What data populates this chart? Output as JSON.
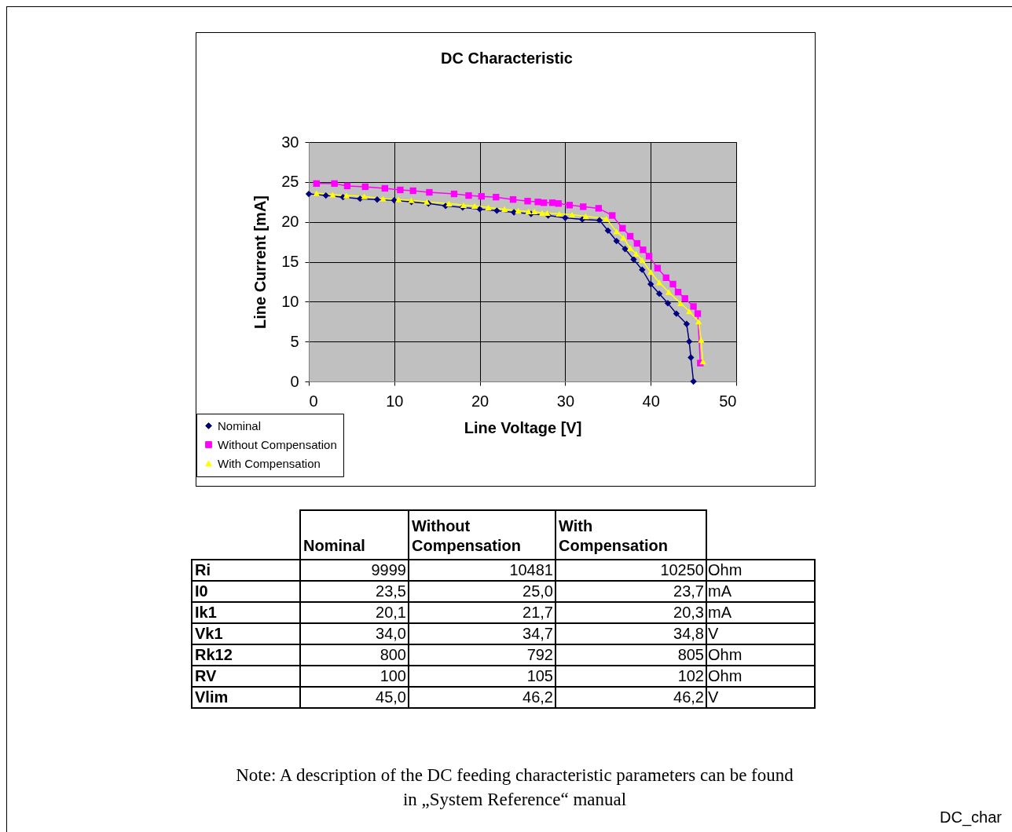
{
  "chart_data": [
    {
      "type": "line",
      "title": "DC Characteristic",
      "xlabel": "Line Voltage [V]",
      "ylabel": "Line Current [mA]",
      "xlim": [
        0,
        50
      ],
      "xticks": [
        0,
        10,
        20,
        30,
        40,
        50
      ],
      "ylim": [
        0,
        30
      ],
      "yticks": [
        0,
        5,
        10,
        15,
        20,
        25,
        30
      ],
      "grid": true,
      "legend": "bottom left",
      "series": [
        {
          "name": "Nominal",
          "color": "#000080",
          "marker": "diamond",
          "x": [
            0,
            2,
            4,
            6,
            8,
            10,
            12,
            14,
            16,
            18,
            20,
            22,
            24,
            26,
            28,
            30,
            32,
            34,
            35,
            36,
            37,
            38,
            39,
            40,
            41,
            42,
            43,
            44.2,
            44.5,
            44.7,
            45
          ],
          "values": [
            23.5,
            23.3,
            23.1,
            22.9,
            22.8,
            22.7,
            22.5,
            22.3,
            22.0,
            21.8,
            21.6,
            21.4,
            21.2,
            21.0,
            20.8,
            20.5,
            20.3,
            20.2,
            18.9,
            17.6,
            16.6,
            15.3,
            14.0,
            12.2,
            11.0,
            9.8,
            8.5,
            7.2,
            5.0,
            3.0,
            0
          ]
        },
        {
          "name": "Without Compensation",
          "color": "#ff00ff",
          "marker": "square",
          "x": [
            0.9,
            3.0,
            4.5,
            6.6,
            8.9,
            10.7,
            12.2,
            14.1,
            17.0,
            18.7,
            20.2,
            21.9,
            23.9,
            25.6,
            26.8,
            27.5,
            28.5,
            29.2,
            30.5,
            32.1,
            33.9,
            35.5,
            36.7,
            37.6,
            38.4,
            39.1,
            39.8,
            40.8,
            41.8,
            42.6,
            43.2,
            44.0,
            45.0,
            45.5,
            45.8
          ],
          "values": [
            24.8,
            24.8,
            24.5,
            24.4,
            24.2,
            24.0,
            23.9,
            23.7,
            23.5,
            23.3,
            23.2,
            23.1,
            22.8,
            22.6,
            22.5,
            22.4,
            22.4,
            22.3,
            22.1,
            21.9,
            21.7,
            20.8,
            19.2,
            18.2,
            17.3,
            16.5,
            15.7,
            14.2,
            13.0,
            12.2,
            11.2,
            10.4,
            9.4,
            8.5,
            2.3
          ]
        },
        {
          "name": "With Compensation",
          "color": "#ffff00",
          "marker": "triangle",
          "x": [
            0.9,
            2.8,
            4.4,
            6.5,
            8.7,
            10.5,
            12.0,
            13.8,
            16.4,
            18.1,
            19.4,
            21.0,
            22.9,
            24.5,
            25.7,
            26.4,
            27.3,
            27.9,
            29.3,
            30.8,
            32.4,
            34.8,
            36.0,
            36.8,
            37.6,
            38.3,
            39.0,
            40.0,
            41.0,
            42.1,
            43.5,
            44.5,
            45.6,
            45.9,
            46.1
          ],
          "values": [
            23.6,
            23.4,
            23.3,
            23.2,
            22.9,
            22.8,
            22.7,
            22.5,
            22.3,
            22.1,
            22.0,
            21.8,
            21.6,
            21.4,
            21.3,
            21.3,
            21.1,
            21.1,
            21.0,
            20.9,
            20.7,
            20.4,
            18.8,
            18.0,
            16.7,
            16.0,
            15.2,
            13.7,
            12.4,
            11.2,
            9.8,
            8.8,
            7.5,
            5.2,
            2.5
          ]
        }
      ]
    },
    {
      "type": "other",
      "categories": [
        "Nominal",
        "Without Compensation",
        "With Compensation"
      ],
      "y_categories": [
        "Ri",
        "I0",
        "Ik1",
        "Vk1",
        "Rk12",
        "RV",
        "Vlim"
      ],
      "y2_categories": [
        "Ohm",
        "mA",
        "mA",
        "V",
        "Ohm",
        "Ohm",
        "V"
      ],
      "cell_labels": [
        [
          "9999",
          "10481",
          "10250"
        ],
        [
          "23,5",
          "25,0",
          "23,7"
        ],
        [
          "20,1",
          "21,7",
          "20,3"
        ],
        [
          "34,0",
          "34,7",
          "34,8"
        ],
        [
          "800",
          "792",
          "805"
        ],
        [
          "100",
          "105",
          "102"
        ],
        [
          "45,0",
          "46,2",
          "46,2"
        ]
      ],
      "annotations": [
        "Note: A description of the DC feeding characteristic parameters can be found in „System Reference“ manual",
        "DC_char"
      ]
    }
  ]
}
